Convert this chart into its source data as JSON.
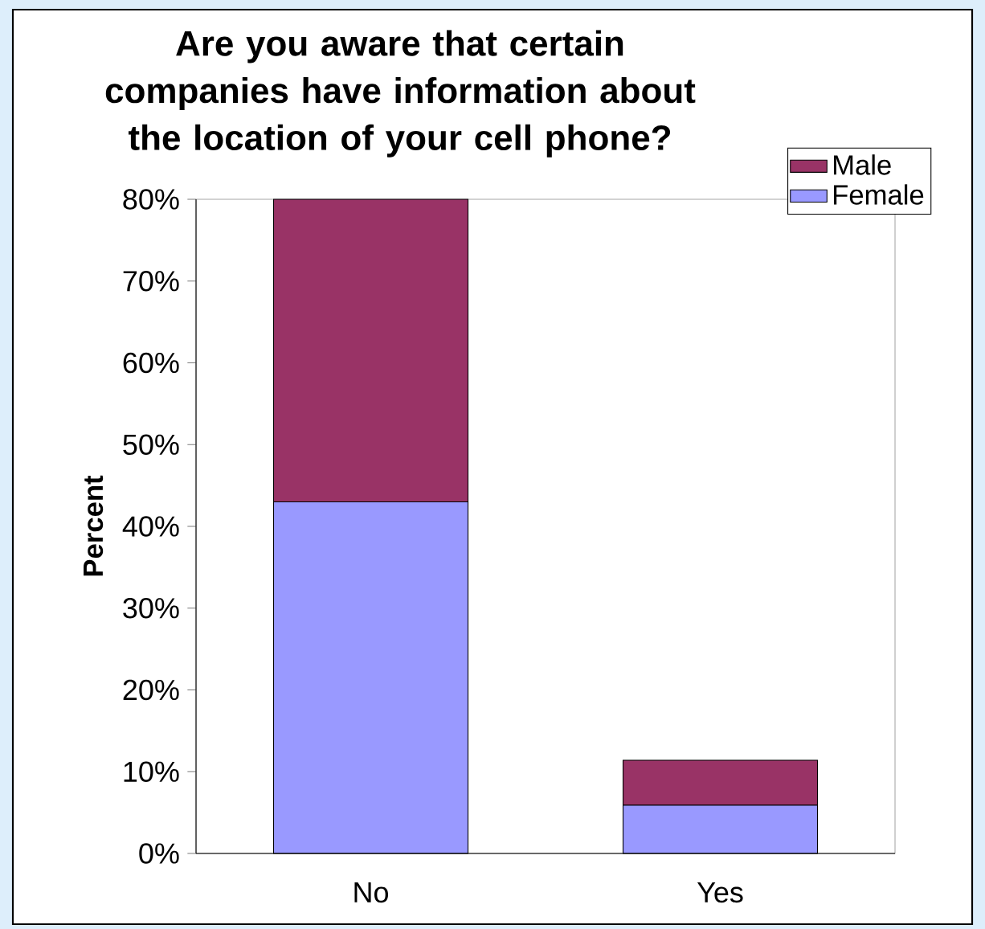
{
  "chart_data": {
    "type": "bar",
    "title": "Are you aware that certain companies have information about the location of your cell phone?",
    "ylabel": "Percent",
    "categories": [
      "No",
      "Yes"
    ],
    "stacked": true,
    "series": [
      {
        "name": "Female",
        "color": "#9999ff",
        "values": [
          43,
          5.9
        ]
      },
      {
        "name": "Male",
        "color": "#993366",
        "values": [
          37,
          5.5
        ]
      }
    ],
    "ylim": [
      0,
      80
    ],
    "yticks": [
      {
        "value": 0,
        "label": "0%"
      },
      {
        "value": 10,
        "label": "10%"
      },
      {
        "value": 20,
        "label": "20%"
      },
      {
        "value": 30,
        "label": "30%"
      },
      {
        "value": 40,
        "label": "40%"
      },
      {
        "value": 50,
        "label": "50%"
      },
      {
        "value": 60,
        "label": "60%"
      },
      {
        "value": 70,
        "label": "70%"
      },
      {
        "value": 80,
        "label": "80%"
      }
    ],
    "grid": false,
    "legend": "top right"
  }
}
